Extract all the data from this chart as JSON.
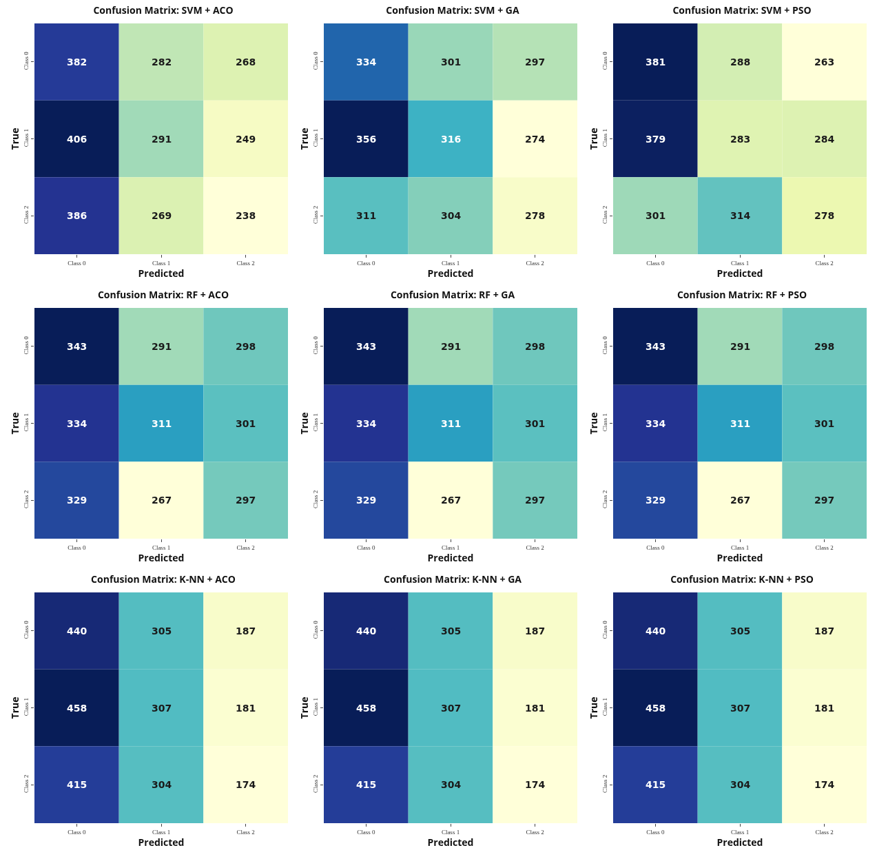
{
  "chart_data": [
    {
      "type": "heatmap",
      "title": "Confusion Matrix: SVM + ACO",
      "xlabel": "Predicted",
      "ylabel": "True",
      "categories": [
        "Class 0",
        "Class 1",
        "Class 2"
      ],
      "y_categories": [
        "Class 0",
        "Class 1",
        "Class 2"
      ],
      "cells": [
        [
          382,
          282,
          268
        ],
        [
          406,
          291,
          249
        ],
        [
          386,
          269,
          238
        ]
      ],
      "data_labels": true
    },
    {
      "type": "heatmap",
      "title": "Confusion Matrix: SVM + GA",
      "xlabel": "Predicted",
      "ylabel": "True",
      "categories": [
        "Class 0",
        "Class 1",
        "Class 2"
      ],
      "y_categories": [
        "Class 0",
        "Class 1",
        "Class 2"
      ],
      "cells": [
        [
          334,
          301,
          297
        ],
        [
          356,
          316,
          274
        ],
        [
          311,
          304,
          278
        ]
      ],
      "data_labels": true
    },
    {
      "type": "heatmap",
      "title": "Confusion Matrix: SVM + PSO",
      "xlabel": "Predicted",
      "ylabel": "True",
      "categories": [
        "Class 0",
        "Class 1",
        "Class 2"
      ],
      "y_categories": [
        "Class 0",
        "Class 1",
        "Class 2"
      ],
      "cells": [
        [
          381,
          288,
          263
        ],
        [
          379,
          283,
          284
        ],
        [
          301,
          314,
          278
        ]
      ],
      "data_labels": true
    },
    {
      "type": "heatmap",
      "title": "Confusion Matrix: RF + ACO",
      "xlabel": "Predicted",
      "ylabel": "True",
      "categories": [
        "Class 0",
        "Class 1",
        "Class 2"
      ],
      "y_categories": [
        "Class 0",
        "Class 1",
        "Class 2"
      ],
      "cells": [
        [
          343,
          291,
          298
        ],
        [
          334,
          311,
          301
        ],
        [
          329,
          267,
          297
        ]
      ],
      "data_labels": true
    },
    {
      "type": "heatmap",
      "title": "Confusion Matrix: RF + GA",
      "xlabel": "Predicted",
      "ylabel": "True",
      "categories": [
        "Class 0",
        "Class 1",
        "Class 2"
      ],
      "y_categories": [
        "Class 0",
        "Class 1",
        "Class 2"
      ],
      "cells": [
        [
          343,
          291,
          298
        ],
        [
          334,
          311,
          301
        ],
        [
          329,
          267,
          297
        ]
      ],
      "data_labels": true
    },
    {
      "type": "heatmap",
      "title": "Confusion Matrix: RF + PSO",
      "xlabel": "Predicted",
      "ylabel": "True",
      "categories": [
        "Class 0",
        "Class 1",
        "Class 2"
      ],
      "y_categories": [
        "Class 0",
        "Class 1",
        "Class 2"
      ],
      "cells": [
        [
          343,
          291,
          298
        ],
        [
          334,
          311,
          301
        ],
        [
          329,
          267,
          297
        ]
      ],
      "data_labels": true
    },
    {
      "type": "heatmap",
      "title": "Confusion Matrix: K-NN + ACO",
      "xlabel": "Predicted",
      "ylabel": "True",
      "categories": [
        "Class 0",
        "Class 1",
        "Class 2"
      ],
      "y_categories": [
        "Class 0",
        "Class 1",
        "Class 2"
      ],
      "cells": [
        [
          440,
          305,
          187
        ],
        [
          458,
          307,
          181
        ],
        [
          415,
          304,
          174
        ]
      ],
      "data_labels": true
    },
    {
      "type": "heatmap",
      "title": "Confusion Matrix: K-NN + GA",
      "xlabel": "Predicted",
      "ylabel": "True",
      "categories": [
        "Class 0",
        "Class 1",
        "Class 2"
      ],
      "y_categories": [
        "Class 0",
        "Class 1",
        "Class 2"
      ],
      "cells": [
        [
          440,
          305,
          187
        ],
        [
          458,
          307,
          181
        ],
        [
          415,
          304,
          174
        ]
      ],
      "data_labels": true
    },
    {
      "type": "heatmap",
      "title": "Confusion Matrix: K-NN + PSO",
      "xlabel": "Predicted",
      "ylabel": "True",
      "categories": [
        "Class 0",
        "Class 1",
        "Class 2"
      ],
      "y_categories": [
        "Class 0",
        "Class 1",
        "Class 2"
      ],
      "cells": [
        [
          440,
          305,
          187
        ],
        [
          458,
          307,
          181
        ],
        [
          415,
          304,
          174
        ]
      ],
      "data_labels": true
    }
  ]
}
